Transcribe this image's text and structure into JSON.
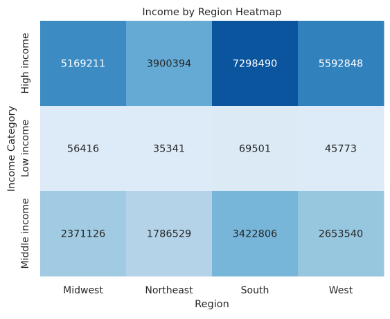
{
  "chart_data": {
    "type": "heatmap",
    "title": "Income by Region Heatmap",
    "xlabel": "Region",
    "ylabel": "Income Category",
    "x_categories": [
      "Midwest",
      "Northeast",
      "South",
      "West"
    ],
    "y_categories": [
      "High income",
      "Low income",
      "Middle income"
    ],
    "values": [
      [
        5169211,
        3900394,
        7298490,
        5592848
      ],
      [
        56416,
        35341,
        69501,
        45773
      ],
      [
        2371126,
        1786529,
        3422806,
        2653540
      ]
    ],
    "colormap": "Blues",
    "colorbar": false,
    "grid": false
  }
}
